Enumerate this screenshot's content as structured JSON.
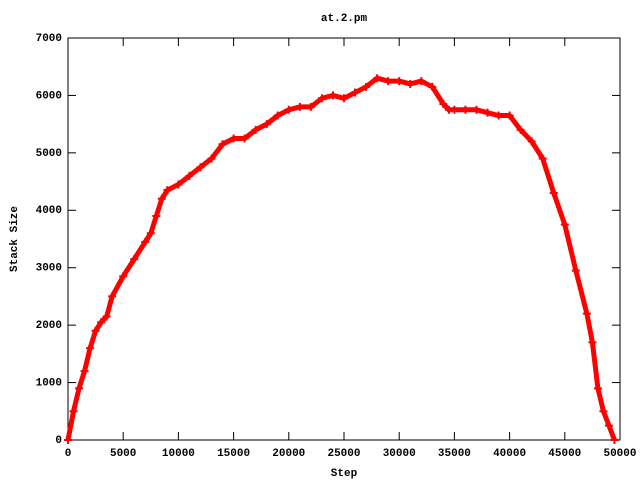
{
  "chart_data": {
    "type": "scatter",
    "title": "at.2.pm",
    "xlabel": "Step",
    "ylabel": "Stack Size",
    "series": [
      {
        "name": null,
        "color": "#ff0000",
        "x": [
          0,
          500,
          1000,
          1500,
          2000,
          2500,
          3000,
          3500,
          4000,
          5000,
          6000,
          7000,
          7500,
          8000,
          8500,
          9000,
          10000,
          11000,
          12000,
          13000,
          14000,
          15000,
          16000,
          17000,
          18000,
          19000,
          20000,
          21000,
          22000,
          23000,
          24000,
          25000,
          26000,
          27000,
          28000,
          29000,
          30000,
          31000,
          32000,
          33000,
          34000,
          34500,
          35000,
          36000,
          37000,
          38000,
          39000,
          40000,
          41000,
          42000,
          43000,
          44000,
          45000,
          46000,
          47000,
          47500,
          48000,
          48500,
          49000,
          49500
        ],
        "values": [
          0,
          500,
          900,
          1200,
          1600,
          1900,
          2050,
          2150,
          2500,
          2850,
          3150,
          3450,
          3600,
          3900,
          4200,
          4350,
          4450,
          4600,
          4750,
          4900,
          5150,
          5250,
          5250,
          5400,
          5500,
          5650,
          5750,
          5800,
          5800,
          5950,
          6000,
          5950,
          6050,
          6150,
          6300,
          6250,
          6250,
          6200,
          6250,
          6150,
          5850,
          5750,
          5750,
          5750,
          5750,
          5700,
          5650,
          5650,
          5400,
          5200,
          4900,
          4300,
          3750,
          2950,
          2200,
          1700,
          900,
          500,
          250,
          0
        ]
      }
    ],
    "xlim": [
      0,
      50000
    ],
    "xticks": [
      0,
      5000,
      10000,
      15000,
      20000,
      25000,
      30000,
      35000,
      40000,
      45000,
      50000
    ],
    "ylim": [
      0,
      7000
    ],
    "yticks": [
      0,
      1000,
      2000,
      3000,
      4000,
      5000,
      6000,
      7000
    ]
  }
}
